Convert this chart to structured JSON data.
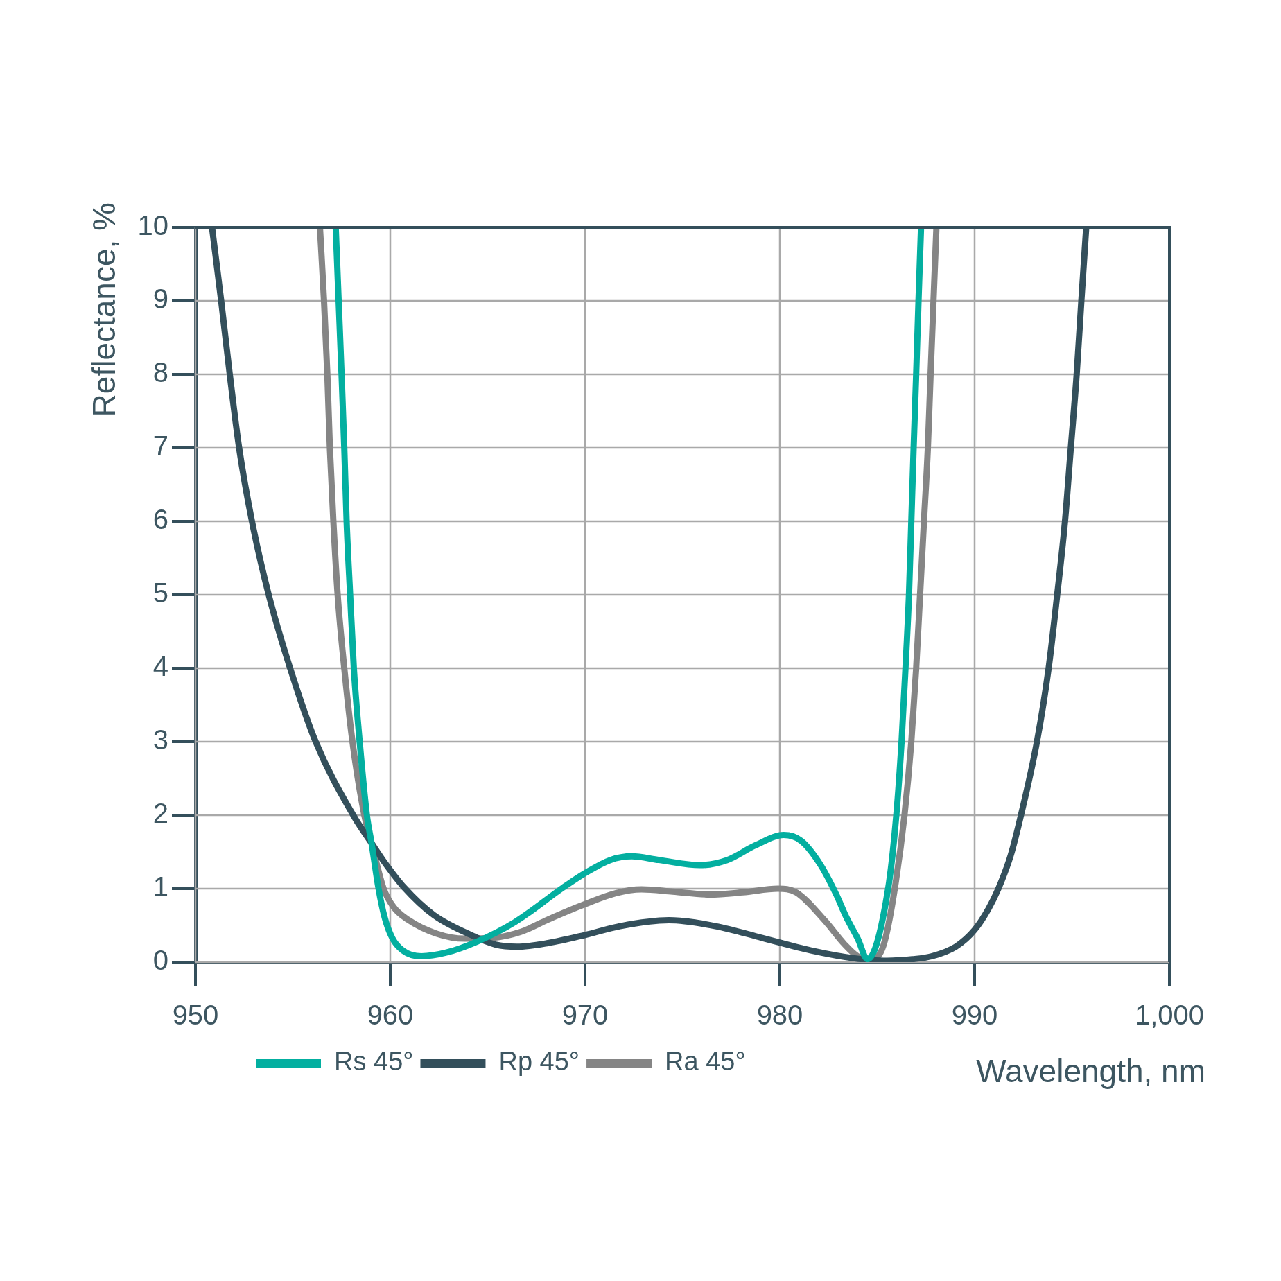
{
  "chart_data": {
    "type": "line",
    "xlabel": "Wavelength, nm",
    "ylabel": "Reflectance, %",
    "xlim": [
      950,
      1000
    ],
    "ylim": [
      0,
      10
    ],
    "xticks": [
      950,
      960,
      970,
      980,
      990,
      {
        "value": 1000,
        "label": "1,000"
      }
    ],
    "yticks": [
      0,
      1,
      2,
      3,
      4,
      5,
      6,
      7,
      8,
      9,
      10
    ],
    "grid": true,
    "legend": "bottom left",
    "marker": "none",
    "line_style": "solid",
    "series": [
      {
        "name": "Rs 45°",
        "color": "#03afa0",
        "x": [
          957.2,
          957.35,
          957.5,
          957.64,
          957.76,
          957.94,
          958.13,
          958.43,
          958.8,
          959.04,
          959.4,
          959.7,
          960.1,
          960.64,
          961.6,
          962.87,
          964.46,
          966.37,
          968.9,
          970.0,
          971.3,
          972.4,
          973.8,
          975.9,
          977.3,
          978.75,
          980.2,
          981.1,
          982.1,
          982.9,
          983.4,
          984.0,
          984.5,
          985.56,
          985.98,
          986.25,
          986.45,
          986.63,
          986.75,
          986.87,
          987.0,
          987.12,
          987.25
        ],
        "values": [
          10,
          9,
          8,
          7,
          6,
          5,
          4,
          3,
          2,
          1.62,
          1.0,
          0.62,
          0.33,
          0.16,
          0.08,
          0.13,
          0.28,
          0.54,
          1.02,
          1.21,
          1.39,
          1.44,
          1.39,
          1.32,
          1.39,
          1.59,
          1.73,
          1.65,
          1.32,
          0.92,
          0.62,
          0.32,
          0.04,
          1.0,
          2,
          3,
          4,
          5,
          6,
          7,
          8,
          9,
          10
        ]
      },
      {
        "name": "Rp 45°",
        "color": "#334f5b",
        "x": [
          950.85,
          951.32,
          951.76,
          952.24,
          952.9,
          953.76,
          954.86,
          956.17,
          958.1,
          959.04,
          959.7,
          960.7,
          962.24,
          964.14,
          965.4,
          966.5,
          968.1,
          970.0,
          971.8,
          974.3,
          976.7,
          979.1,
          981.6,
          983.9,
          985.5,
          986.8,
          987.8,
          989.03,
          990.0,
          990.7,
          991.22,
          991.85,
          992.38,
          993.2,
          993.8,
          994.24,
          994.64,
          994.94,
          995.24,
          995.48,
          995.73
        ],
        "values": [
          10,
          9,
          8,
          7,
          6,
          5,
          4,
          3,
          2,
          1.62,
          1.36,
          1.02,
          0.64,
          0.37,
          0.24,
          0.21,
          0.26,
          0.37,
          0.49,
          0.57,
          0.49,
          0.33,
          0.16,
          0.05,
          0.02,
          0.04,
          0.08,
          0.21,
          0.44,
          0.72,
          1.0,
          1.45,
          2,
          3,
          4,
          5,
          6,
          7,
          8,
          9,
          10
        ]
      },
      {
        "name": "Ra 45°",
        "color": "#858585",
        "x": [
          956.39,
          956.6,
          956.77,
          956.9,
          957.08,
          957.3,
          957.64,
          958.06,
          958.67,
          959.04,
          959.66,
          960.17,
          960.9,
          962.36,
          963.83,
          965.25,
          966.68,
          968.1,
          970.0,
          971.6,
          972.9,
          974.5,
          976.4,
          978.1,
          979.9,
          980.84,
          982.33,
          983.3,
          984.0,
          984.6,
          985.1,
          985.4,
          985.9,
          986.4,
          986.75,
          987.0,
          987.2,
          987.4,
          987.6,
          987.74,
          987.89,
          988.04
        ],
        "values": [
          10,
          9,
          8,
          7,
          6,
          5,
          4,
          3,
          2,
          1.62,
          1.0,
          0.75,
          0.58,
          0.39,
          0.32,
          0.33,
          0.41,
          0.58,
          0.79,
          0.94,
          0.99,
          0.96,
          0.92,
          0.95,
          1.0,
          0.95,
          0.56,
          0.25,
          0.08,
          0.04,
          0.1,
          0.3,
          1.0,
          2,
          3,
          4,
          5,
          6,
          7,
          8,
          9,
          10
        ]
      }
    ]
  }
}
